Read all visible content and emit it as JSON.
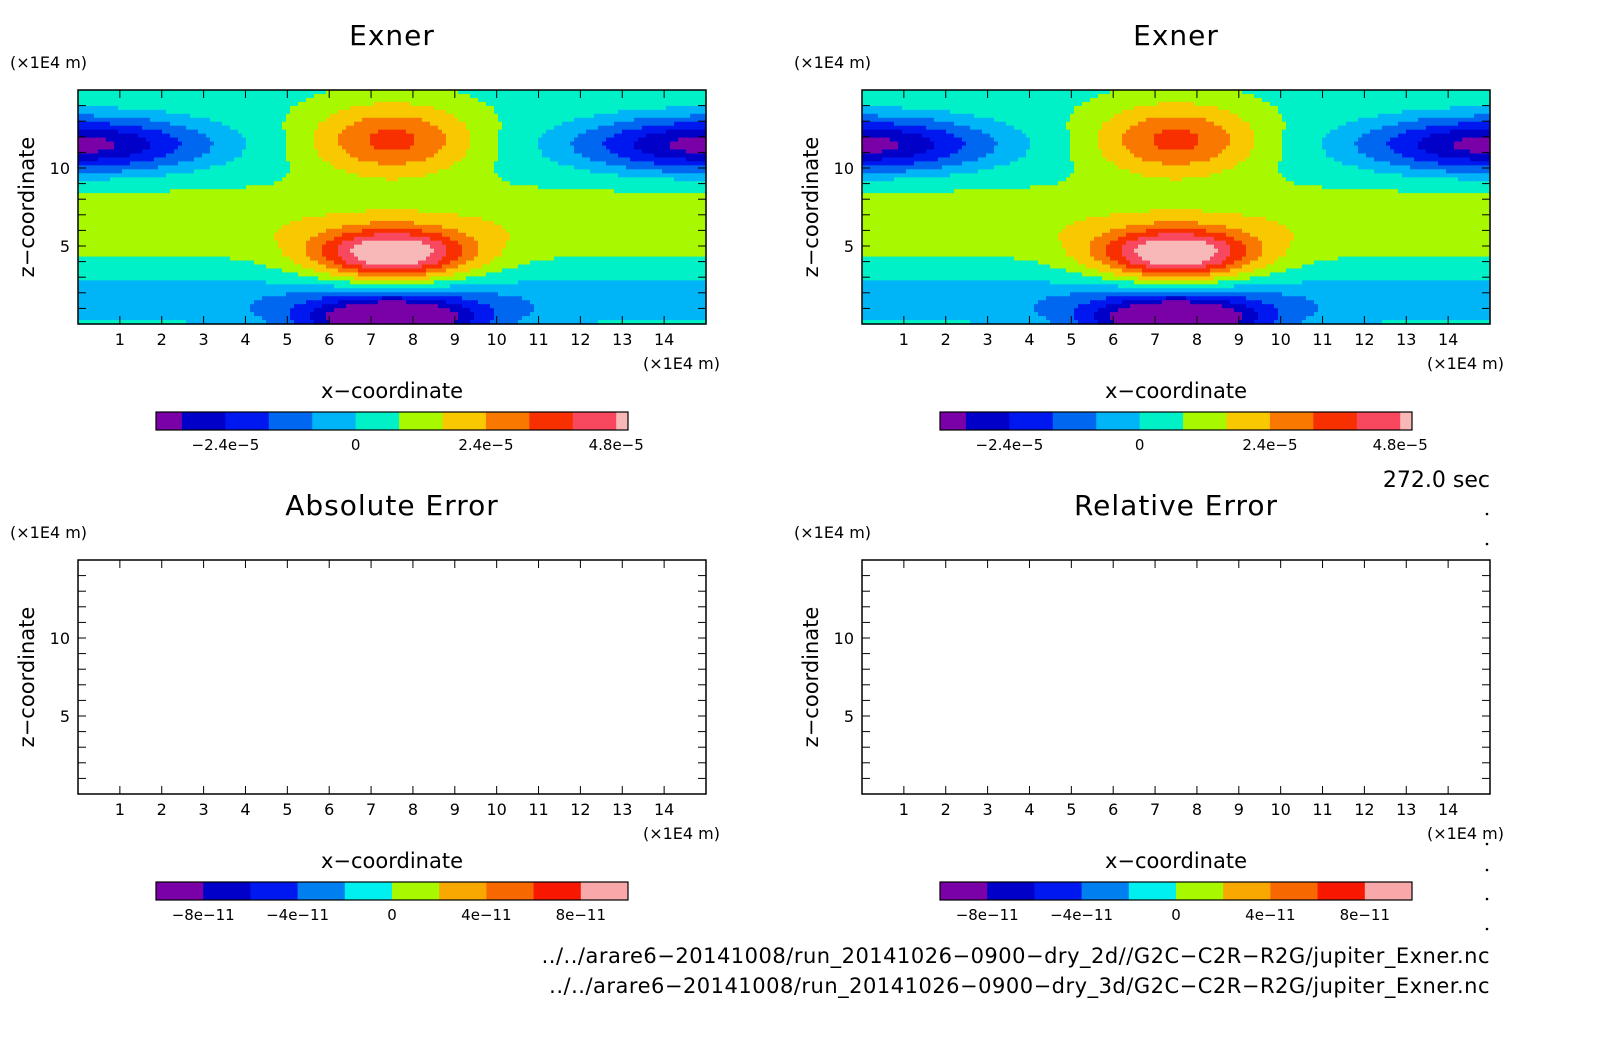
{
  "chart_data": [
    {
      "type": "heatmap",
      "title": "Exner",
      "xlabel": "x−coordinate",
      "ylabel": "z−coordinate",
      "x_unit": "(×1E4 m)",
      "y_unit": "(×1E4 m)",
      "xlim": [
        0,
        15
      ],
      "ylim": [
        0,
        15
      ],
      "xticks": [
        "1",
        "2",
        "3",
        "4",
        "5",
        "6",
        "7",
        "8",
        "9",
        "10",
        "11",
        "12",
        "13",
        "14"
      ],
      "yticks": [
        "5",
        "10"
      ],
      "field": "pressure_anomaly",
      "colorbar": {
        "colors": [
          "#7a00a8",
          "#0000c8",
          "#0018f0",
          "#0068f0",
          "#00b4f8",
          "#00f0c8",
          "#a8f800",
          "#f8c800",
          "#f87800",
          "#f83000",
          "#f84860",
          "#f8b8b8"
        ],
        "tick_labels": [
          "−2.4e−5",
          "0",
          "2.4e−5",
          "4.8e−5"
        ]
      }
    },
    {
      "type": "heatmap",
      "title": "Exner",
      "xlabel": "x−coordinate",
      "ylabel": "z−coordinate",
      "x_unit": "(×1E4 m)",
      "y_unit": "(×1E4 m)",
      "xlim": [
        0,
        15
      ],
      "ylim": [
        0,
        15
      ],
      "xticks": [
        "1",
        "2",
        "3",
        "4",
        "5",
        "6",
        "7",
        "8",
        "9",
        "10",
        "11",
        "12",
        "13",
        "14"
      ],
      "yticks": [
        "5",
        "10"
      ],
      "field": "pressure_anomaly",
      "colorbar": {
        "colors": [
          "#7a00a8",
          "#0000c8",
          "#0018f0",
          "#0068f0",
          "#00b4f8",
          "#00f0c8",
          "#a8f800",
          "#f8c800",
          "#f87800",
          "#f83000",
          "#f84860",
          "#f8b8b8"
        ],
        "tick_labels": [
          "−2.4e−5",
          "0",
          "2.4e−5",
          "4.8e−5"
        ]
      }
    },
    {
      "type": "heatmap",
      "title": "Absolute Error",
      "xlabel": "x−coordinate",
      "ylabel": "z−coordinate",
      "x_unit": "(×1E4 m)",
      "y_unit": "(×1E4 m)",
      "xlim": [
        0,
        15
      ],
      "ylim": [
        0,
        15
      ],
      "xticks": [
        "1",
        "2",
        "3",
        "4",
        "5",
        "6",
        "7",
        "8",
        "9",
        "10",
        "11",
        "12",
        "13",
        "14"
      ],
      "yticks": [
        "5",
        "10"
      ],
      "field": "blank",
      "colorbar": {
        "colors": [
          "#7a00a8",
          "#0000c8",
          "#0018f0",
          "#0080f0",
          "#00f0f0",
          "#a8f800",
          "#f8a800",
          "#f86800",
          "#f81800",
          "#f8a8a8"
        ],
        "tick_labels": [
          "−8e−11",
          "−4e−11",
          "0",
          "4e−11",
          "8e−11"
        ]
      }
    },
    {
      "type": "heatmap",
      "title": "Relative Error",
      "xlabel": "x−coordinate",
      "ylabel": "z−coordinate",
      "x_unit": "(×1E4 m)",
      "y_unit": "(×1E4 m)",
      "xlim": [
        0,
        15
      ],
      "ylim": [
        0,
        15
      ],
      "xticks": [
        "1",
        "2",
        "3",
        "4",
        "5",
        "6",
        "7",
        "8",
        "9",
        "10",
        "11",
        "12",
        "13",
        "14"
      ],
      "yticks": [
        "5",
        "10"
      ],
      "field": "blank",
      "colorbar": {
        "colors": [
          "#7a00a8",
          "#0000c8",
          "#0018f0",
          "#0080f0",
          "#00f0f0",
          "#a8f800",
          "#f8a800",
          "#f86800",
          "#f81800",
          "#f8a8a8"
        ],
        "tick_labels": [
          "−8e−11",
          "−4e−11",
          "0",
          "4e−11",
          "8e−11"
        ]
      }
    }
  ],
  "annotations": {
    "time_label": "272.0 sec",
    "file_paths": [
      "../../arare6−20141008/run_20141026−0900−dry_2d//G2C−C2R−R2G/jupiter_Exner.nc",
      "../../arare6−20141008/run_20141026−0900−dry_3d/G2C−C2R−R2G/jupiter_Exner.nc"
    ]
  }
}
